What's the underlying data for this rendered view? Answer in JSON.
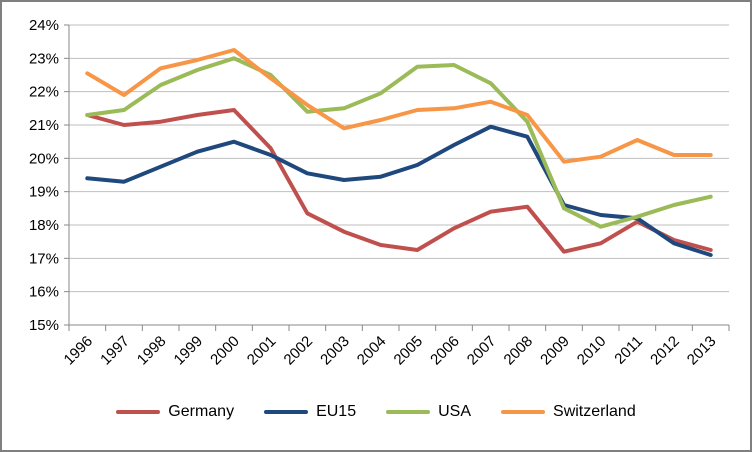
{
  "chart_data": {
    "type": "line",
    "title": "",
    "xlabel": "",
    "ylabel": "",
    "categories": [
      "1996",
      "1997",
      "1998",
      "1999",
      "2000",
      "2001",
      "2002",
      "2003",
      "2004",
      "2005",
      "2006",
      "2007",
      "2008",
      "2009",
      "2010",
      "2011",
      "2012",
      "2013"
    ],
    "series": [
      {
        "name": "Germany",
        "color": "#C0504D",
        "values": [
          21.3,
          21.0,
          21.1,
          21.3,
          21.45,
          20.3,
          18.35,
          17.8,
          17.4,
          17.25,
          17.9,
          18.4,
          18.55,
          17.2,
          17.45,
          18.1,
          17.55,
          17.25
        ]
      },
      {
        "name": "EU15",
        "color": "#1F497D",
        "values": [
          19.4,
          19.3,
          19.75,
          20.2,
          20.5,
          20.1,
          19.55,
          19.35,
          19.45,
          19.8,
          20.4,
          20.95,
          20.65,
          18.6,
          18.3,
          18.2,
          17.45,
          17.1
        ]
      },
      {
        "name": "USA",
        "color": "#9BBB59",
        "values": [
          21.3,
          21.45,
          22.2,
          22.65,
          23.0,
          22.5,
          21.4,
          21.5,
          21.95,
          22.75,
          22.8,
          22.25,
          21.1,
          18.5,
          17.95,
          18.25,
          18.6,
          18.85
        ]
      },
      {
        "name": "Switzerland",
        "color": "#F79646",
        "values": [
          22.55,
          21.9,
          22.7,
          22.95,
          23.25,
          22.4,
          21.6,
          20.9,
          21.15,
          21.45,
          21.5,
          21.7,
          21.3,
          19.9,
          20.05,
          20.55,
          20.1,
          20.1
        ]
      }
    ],
    "ylim": [
      15,
      24
    ],
    "ytick_labels": [
      "15%",
      "16%",
      "17%",
      "18%",
      "19%",
      "20%",
      "21%",
      "22%",
      "23%",
      "24%"
    ],
    "grid": true,
    "legend_position": "bottom",
    "colors": {
      "gridline": "#BFBFBF",
      "axis": "#898989",
      "frame_border": "#7F7F7F",
      "background": "#FFFFFF"
    }
  }
}
